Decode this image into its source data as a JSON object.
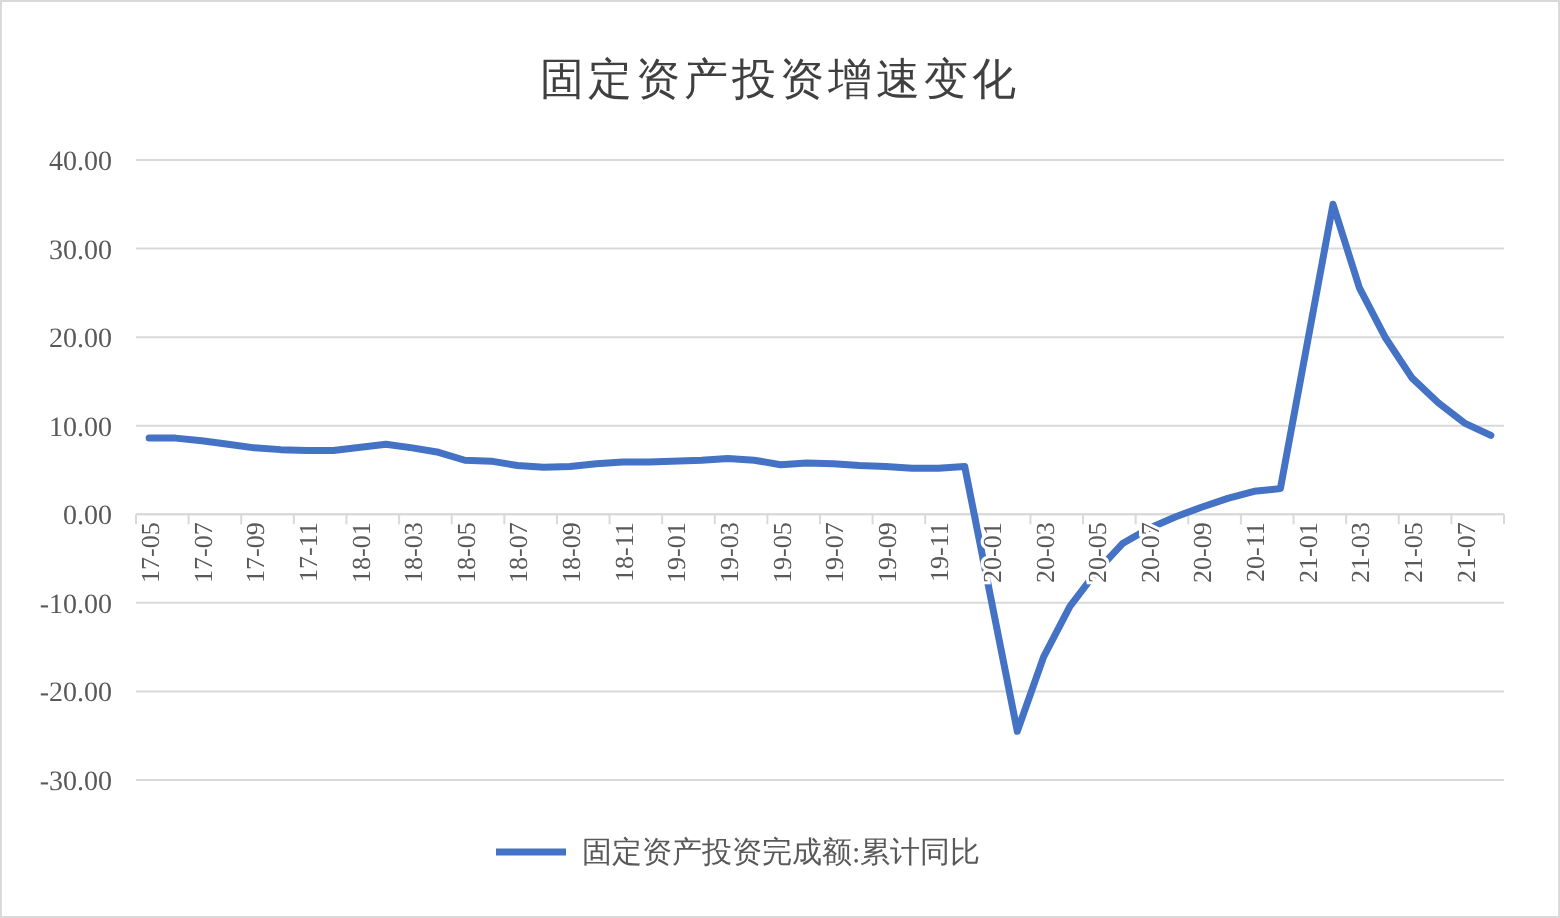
{
  "chart_data": {
    "type": "line",
    "title": "固定资产投资增速变化",
    "categories": [
      "17-05",
      null,
      "17-07",
      null,
      "17-09",
      null,
      "17-11",
      null,
      "18-01",
      null,
      "18-03",
      null,
      "18-05",
      null,
      "18-07",
      null,
      "18-09",
      null,
      "18-11",
      null,
      "19-01",
      null,
      "19-03",
      null,
      "19-05",
      null,
      "19-07",
      null,
      "19-09",
      null,
      "19-11",
      null,
      "20-01",
      null,
      "20-03",
      null,
      "20-05",
      null,
      "20-07",
      null,
      "20-09",
      null,
      "20-11",
      null,
      "21-01",
      null,
      "21-03",
      null,
      "21-05",
      null,
      "21-07",
      null
    ],
    "series": [
      {
        "name": "固定资产投资完成额:累计同比",
        "color": "#4472c4",
        "values": [
          8.6,
          8.6,
          8.3,
          7.9,
          7.5,
          7.3,
          7.2,
          7.2,
          null,
          7.9,
          7.5,
          7.0,
          6.1,
          6.0,
          5.5,
          5.3,
          5.4,
          5.7,
          5.9,
          5.9,
          null,
          6.1,
          6.3,
          6.1,
          5.6,
          5.8,
          5.7,
          5.5,
          5.4,
          5.2,
          5.2,
          5.4,
          null,
          -24.5,
          -16.1,
          -10.4,
          -6.5,
          -3.3,
          -1.6,
          -0.3,
          0.8,
          1.8,
          2.6,
          2.9,
          null,
          35.0,
          25.6,
          19.9,
          15.4,
          12.6,
          10.3,
          8.9
        ]
      }
    ],
    "ylim": [
      -30,
      40
    ],
    "yticks": [
      {
        "value": -30,
        "label": "-30.00"
      },
      {
        "value": -20,
        "label": "-20.00"
      },
      {
        "value": -10,
        "label": "-10.00"
      },
      {
        "value": 0,
        "label": "0.00"
      },
      {
        "value": 10,
        "label": "10.00"
      },
      {
        "value": 20,
        "label": "20.00"
      },
      {
        "value": 30,
        "label": "30.00"
      },
      {
        "value": 40,
        "label": "40.00"
      }
    ],
    "grid": "y",
    "legend": "bottom",
    "marker": "none",
    "line_style": "solid"
  }
}
